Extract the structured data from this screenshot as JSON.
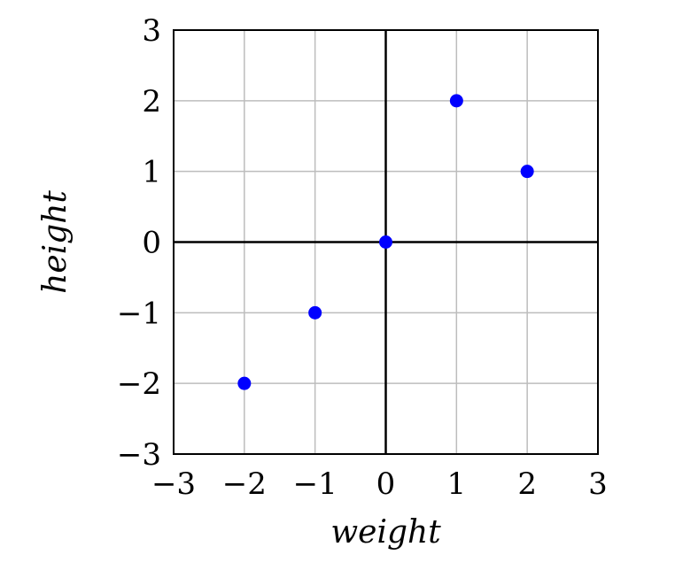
{
  "chart_data": {
    "type": "scatter",
    "title": "",
    "xlabel": "weight",
    "ylabel": "height",
    "xlim": [
      -3,
      3
    ],
    "ylim": [
      -3,
      3
    ],
    "xticks": [
      "−3",
      "−2",
      "−1",
      "0",
      "1",
      "2",
      "3"
    ],
    "yticks": [
      "−3",
      "−2",
      "−1",
      "0",
      "1",
      "2",
      "3"
    ],
    "grid": true,
    "zero_axes": true,
    "series": [
      {
        "x": [
          -2,
          -1,
          0,
          1,
          2
        ],
        "y": [
          -2,
          -1,
          0,
          2,
          1
        ],
        "color": "#0000ff"
      }
    ]
  }
}
